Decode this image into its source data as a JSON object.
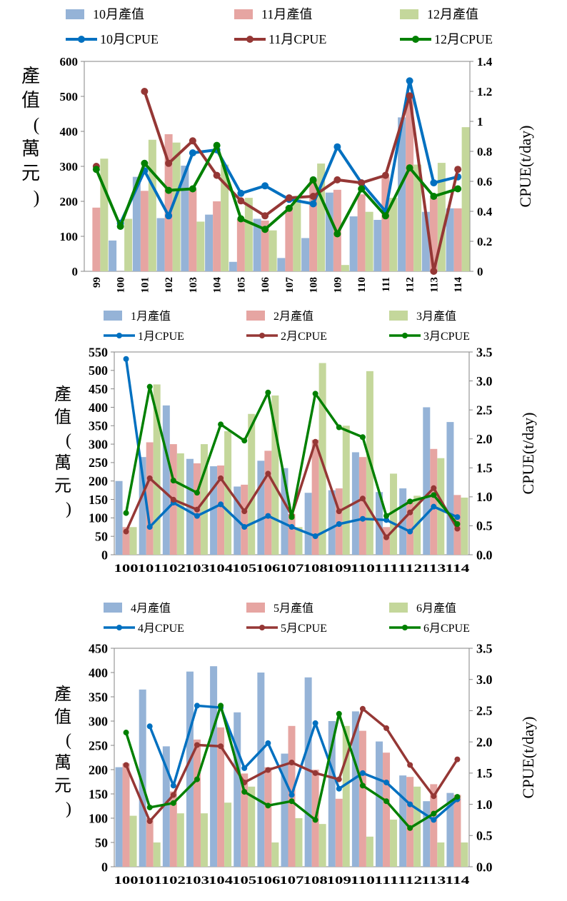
{
  "chart_data": [
    {
      "type": "bar+line",
      "categories": [
        "99",
        "100",
        "101",
        "102",
        "103",
        "104",
        "105",
        "106",
        "107",
        "108",
        "109",
        "110",
        "111",
        "112",
        "113",
        "114"
      ],
      "bar_series": [
        {
          "name": "10月產值",
          "color": "#95B3D7",
          "values": [
            null,
            88,
            270,
            152,
            302,
            162,
            27,
            150,
            38,
            95,
            225,
            157,
            147,
            440,
            170,
            180
          ]
        },
        {
          "name": "11月產值",
          "color": "#E6A5A2",
          "values": [
            182,
            null,
            230,
            392,
            234,
            200,
            150,
            145,
            185,
            260,
            233,
            220,
            270,
            505,
            210,
            180
          ]
        },
        {
          "name": "12月產值",
          "color": "#C4D79B",
          "values": [
            322,
            150,
            376,
            368,
            142,
            305,
            210,
            117,
            206,
            308,
            18,
            170,
            210,
            305,
            310,
            412
          ]
        }
      ],
      "line_series": [
        {
          "name": "10月CPUE",
          "color": "#0070C0",
          "values": [
            null,
            0.32,
            0.67,
            0.37,
            0.79,
            0.81,
            0.52,
            0.57,
            0.48,
            0.45,
            0.83,
            0.59,
            0.4,
            1.27,
            0.59,
            0.63
          ]
        },
        {
          "name": "11月CPUE",
          "color": "#953735",
          "values": [
            0.7,
            null,
            1.2,
            0.72,
            0.87,
            0.64,
            0.47,
            0.37,
            0.49,
            0.5,
            0.61,
            0.59,
            0.64,
            1.17,
            0.0,
            0.68
          ]
        },
        {
          "name": "12月CPUE",
          "color": "#008000",
          "values": [
            0.68,
            0.3,
            0.72,
            0.54,
            0.55,
            0.84,
            0.35,
            0.28,
            0.42,
            0.61,
            0.25,
            0.55,
            0.37,
            0.69,
            0.5,
            0.55
          ]
        }
      ],
      "ylabel": "產值(萬元)",
      "y2label": "CPUE(t/day)",
      "ylim": [
        0,
        600
      ],
      "y2lim": [
        0,
        1.4
      ],
      "yticks": [
        0,
        100,
        200,
        300,
        400,
        500,
        600
      ],
      "y2ticks": [
        0,
        0.2,
        0.4,
        0.6,
        0.8,
        1,
        1.2,
        1.4
      ],
      "ytick_labels": [
        "0",
        "100",
        "200",
        "300",
        "400",
        "500",
        "600"
      ],
      "y2tick_labels": [
        "0",
        "0.2",
        "0.4",
        "0.6",
        "0.8",
        "1",
        "1.2",
        "1.4"
      ]
    },
    {
      "type": "bar+line",
      "categories": [
        "100",
        "101",
        "102",
        "103",
        "104",
        "105",
        "106",
        "107",
        "108",
        "109",
        "110",
        "111",
        "112",
        "113",
        "114"
      ],
      "bar_series": [
        {
          "name": "1月產值",
          "color": "#95B3D7",
          "values": [
            200,
            265,
            405,
            260,
            240,
            185,
            255,
            235,
            168,
            175,
            278,
            170,
            180,
            400,
            360
          ]
        },
        {
          "name": "2月產值",
          "color": "#E6A5A2",
          "values": [
            75,
            305,
            300,
            248,
            242,
            190,
            282,
            110,
            312,
            180,
            265,
            75,
            148,
            287,
            162
          ]
        },
        {
          "name": "3月產值",
          "color": "#C4D79B",
          "values": [
            75,
            462,
            275,
            300,
            335,
            382,
            432,
            75,
            520,
            350,
            498,
            220,
            160,
            262,
            155
          ]
        }
      ],
      "line_series": [
        {
          "name": "1月CPUE",
          "color": "#0070C0",
          "values": [
            3.38,
            0.48,
            0.9,
            0.67,
            0.87,
            0.48,
            0.67,
            0.48,
            0.32,
            0.53,
            0.62,
            0.6,
            0.4,
            0.83,
            0.65
          ]
        },
        {
          "name": "2月CPUE",
          "color": "#953735",
          "values": [
            0.4,
            1.32,
            0.95,
            0.78,
            1.32,
            0.75,
            1.4,
            0.68,
            1.95,
            0.75,
            0.97,
            0.3,
            0.73,
            1.15,
            0.45
          ]
        },
        {
          "name": "3月CPUE",
          "color": "#008000",
          "values": [
            0.72,
            2.9,
            1.28,
            1.07,
            2.25,
            1.97,
            2.8,
            0.65,
            2.78,
            2.2,
            2.03,
            0.67,
            0.92,
            1.03,
            0.53
          ]
        }
      ],
      "ylabel": "產值(萬元)",
      "y2label": "CPUE(t/day)",
      "ylim": [
        0,
        550
      ],
      "y2lim": [
        0,
        3.5
      ],
      "yticks": [
        0,
        50,
        100,
        150,
        200,
        250,
        300,
        350,
        400,
        450,
        500,
        550
      ],
      "y2ticks": [
        0,
        0.5,
        1,
        1.5,
        2,
        2.5,
        3,
        3.5
      ],
      "ytick_labels": [
        "0",
        "50",
        "100",
        "150",
        "200",
        "250",
        "300",
        "350",
        "400",
        "450",
        "500",
        "550"
      ],
      "y2tick_labels": [
        "0.0",
        "0.5",
        "1.0",
        "1.5",
        "2.0",
        "2.5",
        "3.0",
        "3.5"
      ]
    },
    {
      "type": "bar+line",
      "categories": [
        "100",
        "101",
        "102",
        "103",
        "104",
        "105",
        "106",
        "107",
        "108",
        "109",
        "110",
        "111",
        "112",
        "113",
        "114"
      ],
      "bar_series": [
        {
          "name": "4月產值",
          "color": "#95B3D7",
          "values": [
            205,
            365,
            248,
            402,
            413,
            318,
            400,
            233,
            390,
            300,
            320,
            258,
            188,
            135,
            152
          ]
        },
        {
          "name": "5月產值",
          "color": "#E6A5A2",
          "values": [
            213,
            100,
            155,
            262,
            287,
            192,
            205,
            290,
            200,
            140,
            280,
            235,
            185,
            170,
            148
          ]
        },
        {
          "name": "6月產值",
          "color": "#C4D79B",
          "values": [
            105,
            50,
            110,
            110,
            132,
            165,
            50,
            100,
            88,
            290,
            62,
            97,
            165,
            50,
            50
          ]
        }
      ],
      "line_series": [
        {
          "name": "4月CPUE",
          "color": "#0070C0",
          "values": [
            null,
            2.25,
            1.3,
            2.58,
            2.55,
            1.58,
            1.98,
            1.15,
            2.3,
            1.25,
            1.5,
            1.35,
            1.0,
            0.75,
            1.08
          ]
        },
        {
          "name": "5月CPUE",
          "color": "#953735",
          "values": [
            1.63,
            0.73,
            1.15,
            1.95,
            1.93,
            1.35,
            1.55,
            1.67,
            1.5,
            1.4,
            2.53,
            2.22,
            1.63,
            1.13,
            1.72
          ]
        },
        {
          "name": "6月CPUE",
          "color": "#008000",
          "values": [
            2.15,
            0.95,
            1.02,
            1.4,
            2.58,
            1.2,
            0.98,
            1.05,
            0.75,
            2.45,
            1.3,
            1.05,
            0.62,
            0.85,
            1.12
          ]
        }
      ],
      "ylabel": "產值(萬元)",
      "y2label": "CPUE(t/day)",
      "ylim": [
        0,
        450
      ],
      "y2lim": [
        0,
        3.5
      ],
      "yticks": [
        0,
        50,
        100,
        150,
        200,
        250,
        300,
        350,
        400,
        450
      ],
      "y2ticks": [
        0,
        0.5,
        1,
        1.5,
        2,
        2.5,
        3,
        3.5
      ],
      "ytick_labels": [
        "0",
        "50",
        "100",
        "150",
        "200",
        "250",
        "300",
        "350",
        "400",
        "450"
      ],
      "y2tick_labels": [
        "0.0",
        "0.5",
        "1.0",
        "1.5",
        "2.0",
        "2.5",
        "3.0",
        "3.5"
      ]
    }
  ]
}
